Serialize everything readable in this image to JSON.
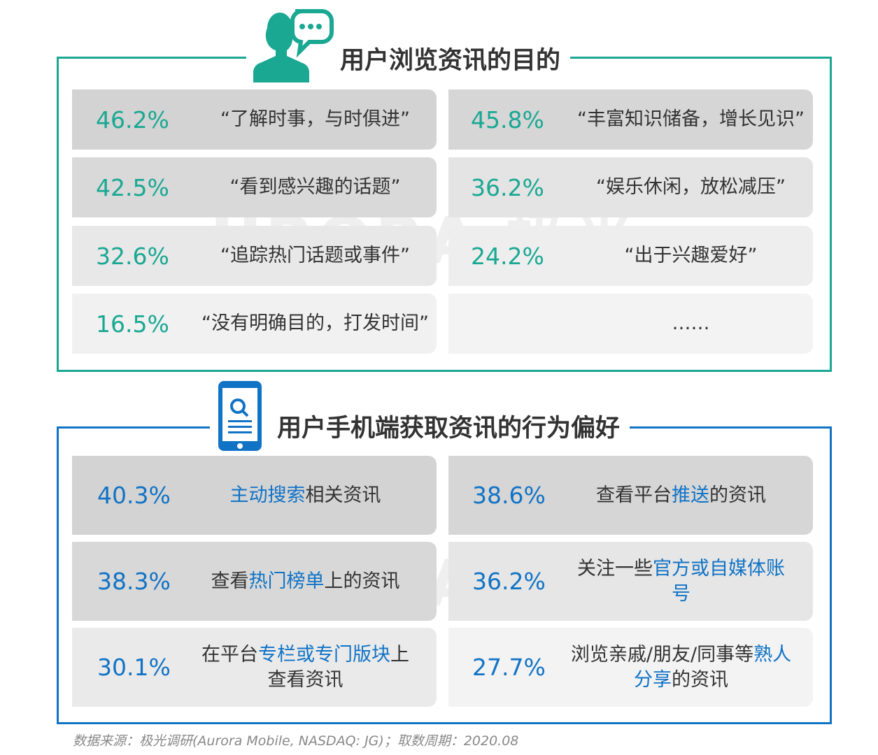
{
  "colors": {
    "teal": "#1aa893",
    "blue": "#1173c6"
  },
  "section1": {
    "title": "用户浏览资讯的目的",
    "icon": "person-speech-bubble-icon",
    "items": [
      {
        "pct": "46.2%",
        "text": "“了解时事，与时俱进”"
      },
      {
        "pct": "45.8%",
        "text": "“丰富知识储备，增长见识”"
      },
      {
        "pct": "42.5%",
        "text": "“看到感兴趣的话题”"
      },
      {
        "pct": "36.2%",
        "text": "“娱乐休闲，放松减压”"
      },
      {
        "pct": "32.6%",
        "text": "“追踪热门话题或事件”"
      },
      {
        "pct": "24.2%",
        "text": "“出于兴趣爱好”"
      },
      {
        "pct": "16.5%",
        "text": "“没有明确目的，打发时间”"
      },
      {
        "pct": "",
        "text": "……"
      }
    ]
  },
  "section2": {
    "title": "用户手机端获取资讯的行为偏好",
    "icon": "phone-search-icon",
    "items": [
      {
        "pct": "40.3%",
        "segments": [
          {
            "t": "主动搜索",
            "hl": true
          },
          {
            "t": "相关资讯",
            "hl": false
          }
        ]
      },
      {
        "pct": "38.6%",
        "segments": [
          {
            "t": "查看平台",
            "hl": false
          },
          {
            "t": "推送",
            "hl": true
          },
          {
            "t": "的资讯",
            "hl": false
          }
        ]
      },
      {
        "pct": "38.3%",
        "segments": [
          {
            "t": "查看",
            "hl": false
          },
          {
            "t": "热门榜单",
            "hl": true
          },
          {
            "t": "上的资讯",
            "hl": false
          }
        ]
      },
      {
        "pct": "36.2%",
        "segments": [
          {
            "t": "关注一些",
            "hl": false
          },
          {
            "t": "官方或自媒体账号",
            "hl": true
          }
        ]
      },
      {
        "pct": "30.1%",
        "segments": [
          {
            "t": "在平台",
            "hl": false
          },
          {
            "t": "专栏或专门版块",
            "hl": true
          },
          {
            "t": "上查看资讯",
            "hl": false
          }
        ]
      },
      {
        "pct": "27.7%",
        "segments": [
          {
            "t": "浏览亲戚/朋友/同事等",
            "hl": false
          },
          {
            "t": "熟人分享",
            "hl": true
          },
          {
            "t": "的资讯",
            "hl": false
          }
        ]
      }
    ]
  },
  "watermark": "URORA 极光",
  "footer": "数据来源：极光调研(Aurora Mobile, NASDAQ: JG)；取数周期：2020.08"
}
